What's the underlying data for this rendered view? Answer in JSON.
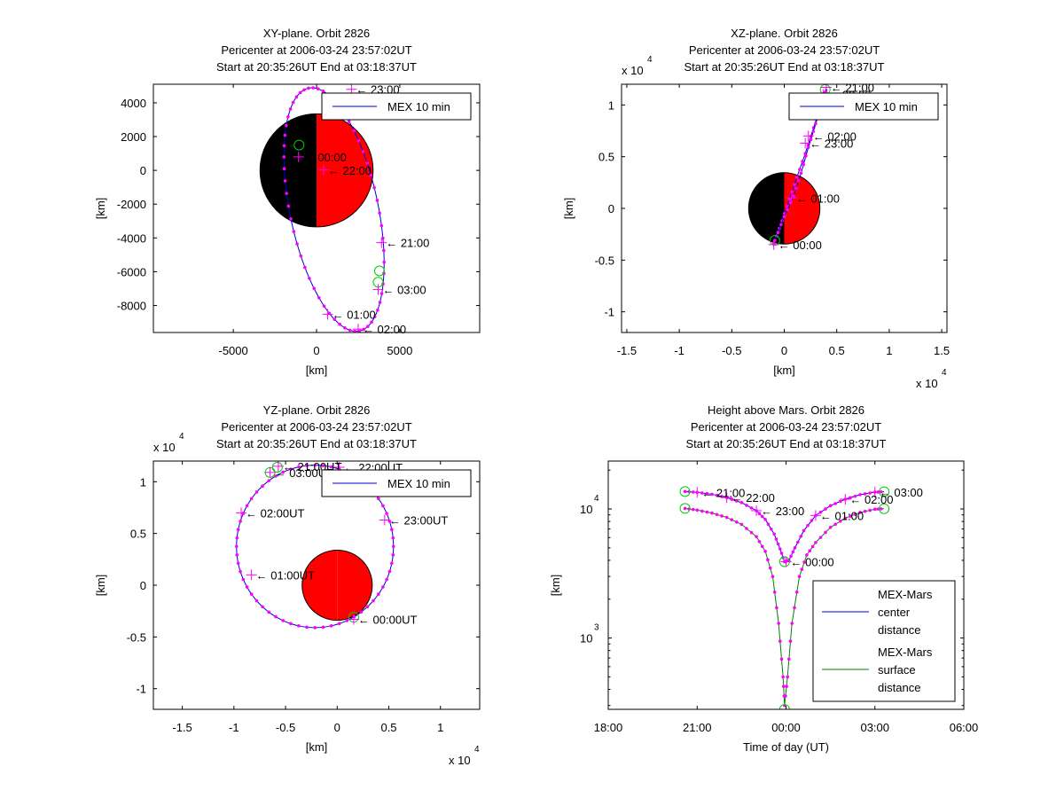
{
  "figure": {
    "background": "#ffffff"
  },
  "chart_data": [
    {
      "id": "xy",
      "type": "scatter",
      "title": [
        "XY-plane.  Orbit 2826",
        "Pericenter at 2006-03-24 23:57:02UT",
        "Start at 20:35:26UT End at 03:18:37UT"
      ],
      "xlabel": "[km]",
      "ylabel": "[km]",
      "xlim": [
        -9800,
        9800
      ],
      "ylim": [
        -9600,
        5100
      ],
      "xticks": [
        -5000,
        0,
        5000
      ],
      "xtick_labels": [
        "-5000",
        "0",
        "5000"
      ],
      "yticks": [
        -8000,
        -6000,
        -4000,
        -2000,
        0,
        2000,
        4000
      ],
      "ytick_labels": [
        "-8000",
        "-6000",
        "-4000",
        "-2000",
        "0",
        "2000",
        "4000"
      ],
      "x_exponent": "",
      "y_exponent": "",
      "planet": {
        "cx": 0,
        "cy": 0,
        "r": 3397,
        "night_color": "#000000",
        "day_color": "#ff0000"
      },
      "legend": {
        "label": "MEX 10 min",
        "position": "top-right"
      },
      "orbit": {
        "center": [
          1050,
          -2320
        ],
        "semi_axes": [
          2650,
          7350
        ],
        "tilt_deg": 12,
        "color": "#0000cc",
        "marker_color": "#ff00ff"
      },
      "hour_marks": [
        {
          "label": "22:00",
          "x": 420,
          "y": 20
        },
        {
          "label": "21:00",
          "x": 3900,
          "y": -4280
        },
        {
          "label": "03:00",
          "x": 3700,
          "y": -7050
        },
        {
          "label": "01:00",
          "x": 670,
          "y": -8520
        },
        {
          "label": "02:00",
          "x": 2500,
          "y": -9400
        },
        {
          "label": "00:00",
          "x": -1080,
          "y": 800
        },
        {
          "label": "23:00",
          "x": 2100,
          "y": 4800
        }
      ],
      "circles": [
        {
          "x": -1050,
          "y": 1500
        },
        {
          "x": 3780,
          "y": -5950
        },
        {
          "x": 3700,
          "y": -6620
        }
      ]
    },
    {
      "id": "xz",
      "type": "scatter",
      "title": [
        "XZ-plane.  Orbit 2826",
        "Pericenter at 2006-03-24 23:57:02UT",
        "Start at 20:35:26UT End at 03:18:37UT"
      ],
      "xlabel": "[km]",
      "ylabel": "[km]",
      "xlim": [
        -15500,
        15500
      ],
      "ylim": [
        -12000,
        12000
      ],
      "xticks": [
        -15000,
        -10000,
        -5000,
        0,
        5000,
        10000,
        15000
      ],
      "xtick_labels": [
        "-1.5",
        "-1",
        "-0.5",
        "0",
        "0.5",
        "1",
        "1.5"
      ],
      "yticks": [
        -10000,
        -5000,
        0,
        5000,
        10000
      ],
      "ytick_labels": [
        "-1",
        "-0.5",
        "0",
        "0.5",
        "1"
      ],
      "x_exponent": "x 10",
      "x_exponent_power": "4",
      "y_exponent": "x 10",
      "y_exponent_power": "4",
      "planet": {
        "cx": 0,
        "cy": 0,
        "r": 3397,
        "night_color": "#000000",
        "day_color": "#ff0000"
      },
      "legend": {
        "label": "MEX 10 min",
        "position": "top-right"
      },
      "tracks": [
        [
          [
            -1000,
            -3400
          ],
          [
            -200,
            -1200
          ],
          [
            500,
            900
          ],
          [
            1200,
            3000
          ],
          [
            2000,
            5300
          ],
          [
            2800,
            7800
          ],
          [
            3600,
            10400
          ],
          [
            4000,
            11600
          ]
        ],
        [
          [
            -900,
            -3100
          ],
          [
            0,
            -800
          ],
          [
            900,
            1200
          ],
          [
            1600,
            3400
          ],
          [
            2300,
            5900
          ],
          [
            3000,
            8200
          ],
          [
            3700,
            10600
          ],
          [
            4100,
            11500
          ]
        ]
      ],
      "hour_marks": [
        {
          "label": "21:00",
          "x": 4000,
          "y": 11700
        },
        {
          "label": "22:00",
          "x": 3700,
          "y": 11000
        },
        {
          "label": "02:00",
          "x": 2300,
          "y": 7000
        },
        {
          "label": "23:00",
          "x": 2000,
          "y": 6300
        },
        {
          "label": "01:00",
          "x": 700,
          "y": 1000
        },
        {
          "label": "00:00",
          "x": -1000,
          "y": -3500
        }
      ],
      "circles": [
        {
          "x": 3900,
          "y": 11500
        },
        {
          "x": -900,
          "y": -3100
        }
      ]
    },
    {
      "id": "yz",
      "type": "scatter",
      "title": [
        "YZ-plane.  Orbit 2826",
        "Pericenter at 2006-03-24 23:57:02UT",
        "Start at 20:35:26UT End at 03:18:37UT"
      ],
      "xlabel": "[km]",
      "ylabel": "[km]",
      "xlim": [
        -17800,
        13800
      ],
      "ylim": [
        -12000,
        12000
      ],
      "xticks": [
        -15000,
        -10000,
        -5000,
        0,
        5000,
        10000
      ],
      "xtick_labels": [
        "-1.5",
        "-1",
        "-0.5",
        "0",
        "0.5",
        "1"
      ],
      "yticks": [
        -10000,
        -5000,
        0,
        5000,
        10000
      ],
      "ytick_labels": [
        "-1",
        "-0.5",
        "0",
        "0.5",
        "1"
      ],
      "x_exponent": "x 10",
      "x_exponent_power": "4",
      "y_exponent": "x 10",
      "y_exponent_power": "4",
      "planet": {
        "cx": 0,
        "cy": 0,
        "r": 3397,
        "night_color": "#ff0000",
        "day_color": "#ff0000"
      },
      "legend": {
        "label": "MEX 10 min",
        "position": "top-right"
      },
      "orbit": {
        "center": [
          -2150,
          3750
        ],
        "semi_axes": [
          7600,
          7850
        ],
        "tilt_deg": 0,
        "color": "#0000cc",
        "marker_color": "#ff00ff"
      },
      "hour_marks": [
        {
          "label": "21:00UT",
          "x": -5700,
          "y": 11500
        },
        {
          "label": "03:00UT",
          "x": -6500,
          "y": 10900
        },
        {
          "label": "22:00UT",
          "x": 200,
          "y": 11400
        },
        {
          "label": "02:00UT",
          "x": -9300,
          "y": 7000
        },
        {
          "label": "23:00UT",
          "x": 4600,
          "y": 6300
        },
        {
          "label": "01:00UT",
          "x": -8300,
          "y": 1000
        },
        {
          "label": "00:00UT",
          "x": 1600,
          "y": -3300
        }
      ],
      "circles": [
        {
          "x": -5800,
          "y": 11400
        },
        {
          "x": -6500,
          "y": 10900
        },
        {
          "x": 1600,
          "y": -3100
        }
      ]
    },
    {
      "id": "height",
      "type": "line",
      "title": [
        "Height above Mars.  Orbit 2826",
        "Pericenter at 2006-03-24 23:57:02UT",
        "Start at 20:35:26UT End at 03:18:37UT"
      ],
      "xlabel": "Time of day (UT)",
      "ylabel": "[km]",
      "xlim": [
        18,
        30
      ],
      "ylim_log10": [
        2.4477,
        4.3711
      ],
      "xticks": [
        18,
        21,
        24,
        27,
        30
      ],
      "xtick_labels": [
        "18:00",
        "21:00",
        "00:00",
        "03:00",
        "06:00"
      ],
      "yticks_log10": [
        3,
        4
      ],
      "ytick_base": "10",
      "ytick_powers": [
        "3",
        "4"
      ],
      "legend": {
        "position": "right"
      },
      "series": [
        {
          "name": "MEX-Mars center distance",
          "legend_lines": [
            "MEX-Mars",
            "center",
            "distance"
          ],
          "color": "#0000cc",
          "marker_color": "#ff00ff",
          "points": [
            [
              20.591,
              13650
            ],
            [
              21.0,
              13450
            ],
            [
              21.5,
              13000
            ],
            [
              22.0,
              12250
            ],
            [
              22.5,
              11200
            ],
            [
              23.0,
              9700
            ],
            [
              23.3,
              8300
            ],
            [
              23.6,
              6400
            ],
            [
              23.8,
              4900
            ],
            [
              23.95,
              3900
            ],
            [
              24.1,
              4000
            ],
            [
              24.3,
              5000
            ],
            [
              24.6,
              6800
            ],
            [
              25.0,
              8900
            ],
            [
              25.5,
              10600
            ],
            [
              26.0,
              11900
            ],
            [
              26.5,
              12900
            ],
            [
              27.0,
              13500
            ],
            [
              27.31,
              13600
            ]
          ]
        },
        {
          "name": "MEX-Mars surface distance",
          "legend_lines": [
            "MEX-Mars",
            "surface",
            "distance"
          ],
          "color": "#008000",
          "marker_color": "#ff00ff",
          "points": [
            [
              20.591,
              10100
            ],
            [
              21.0,
              9800
            ],
            [
              21.5,
              9300
            ],
            [
              22.0,
              8600
            ],
            [
              22.5,
              7600
            ],
            [
              23.0,
              6100
            ],
            [
              23.3,
              4700
            ],
            [
              23.55,
              3000
            ],
            [
              23.75,
              1300
            ],
            [
              23.9,
              500
            ],
            [
              23.95,
              300
            ],
            [
              24.05,
              500
            ],
            [
              24.2,
              1300
            ],
            [
              24.45,
              3000
            ],
            [
              24.7,
              4400
            ],
            [
              25.0,
              5500
            ],
            [
              25.5,
              7200
            ],
            [
              26.0,
              8500
            ],
            [
              26.5,
              9400
            ],
            [
              27.0,
              9950
            ],
            [
              27.31,
              10050
            ]
          ]
        }
      ],
      "hour_marks": [
        {
          "label": "21:00",
          "x": 21.0,
          "y": 13450
        },
        {
          "label": "22:00",
          "x": 22.0,
          "y": 12250
        },
        {
          "label": "23:00",
          "x": 23.0,
          "y": 9700
        },
        {
          "label": "00:00",
          "x": 24.0,
          "y": 3900
        },
        {
          "label": "01:00",
          "x": 25.0,
          "y": 8900
        },
        {
          "label": "02:00",
          "x": 26.0,
          "y": 11900
        },
        {
          "label": "03:00",
          "x": 27.0,
          "y": 13500
        }
      ],
      "circles": [
        {
          "x": 20.591,
          "y": 13650
        },
        {
          "x": 20.591,
          "y": 10100
        },
        {
          "x": 27.31,
          "y": 13600
        },
        {
          "x": 27.31,
          "y": 10050
        },
        {
          "x": 23.95,
          "y": 3900
        },
        {
          "x": 23.95,
          "y": 280
        }
      ]
    }
  ]
}
